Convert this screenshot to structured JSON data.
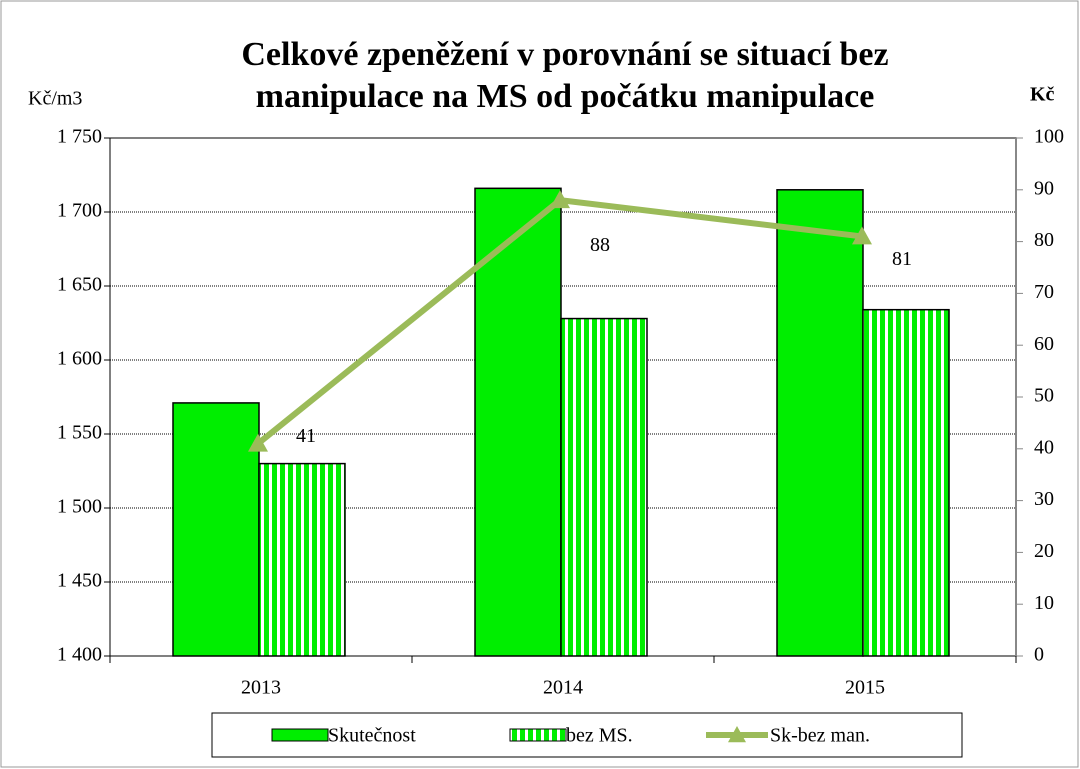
{
  "chart_data": {
    "type": "bar",
    "title": [
      "Celkové  zpeněžení v porovnání se situací bez",
      "manipulace na MS od počátku manipulace"
    ],
    "y_label": "Kč/m3",
    "y2_label": "Kč",
    "categories": [
      "2013",
      "2014",
      "2015"
    ],
    "series": [
      {
        "name": "Skutečnost",
        "type": "bar",
        "color": "#00ee00",
        "values": [
          1571,
          1716,
          1715
        ]
      },
      {
        "name": "bez MS.",
        "type": "bar",
        "pattern": "vertical-stripes",
        "color": "#00ee00",
        "values": [
          1530,
          1628,
          1634
        ]
      },
      {
        "name": "Sk-bez man.",
        "type": "line",
        "axis": "y2",
        "color": "#9bbb59",
        "marker": "triangle",
        "values": [
          41,
          88,
          81
        ]
      }
    ],
    "ylim": [
      1400,
      1750
    ],
    "yticks": [
      {
        "value": 1400,
        "label": "1 400"
      },
      {
        "value": 1450,
        "label": "1 450"
      },
      {
        "value": 1500,
        "label": "1 500"
      },
      {
        "value": 1550,
        "label": "1 550"
      },
      {
        "value": 1600,
        "label": "1 600"
      },
      {
        "value": 1650,
        "label": "1 650"
      },
      {
        "value": 1700,
        "label": "1 700"
      },
      {
        "value": 1750,
        "label": "1 750"
      }
    ],
    "y2lim": [
      0,
      100
    ],
    "y2ticks": [
      0,
      10,
      20,
      30,
      40,
      50,
      60,
      70,
      80,
      90,
      100
    ],
    "grid": true,
    "legend": "bottom"
  }
}
